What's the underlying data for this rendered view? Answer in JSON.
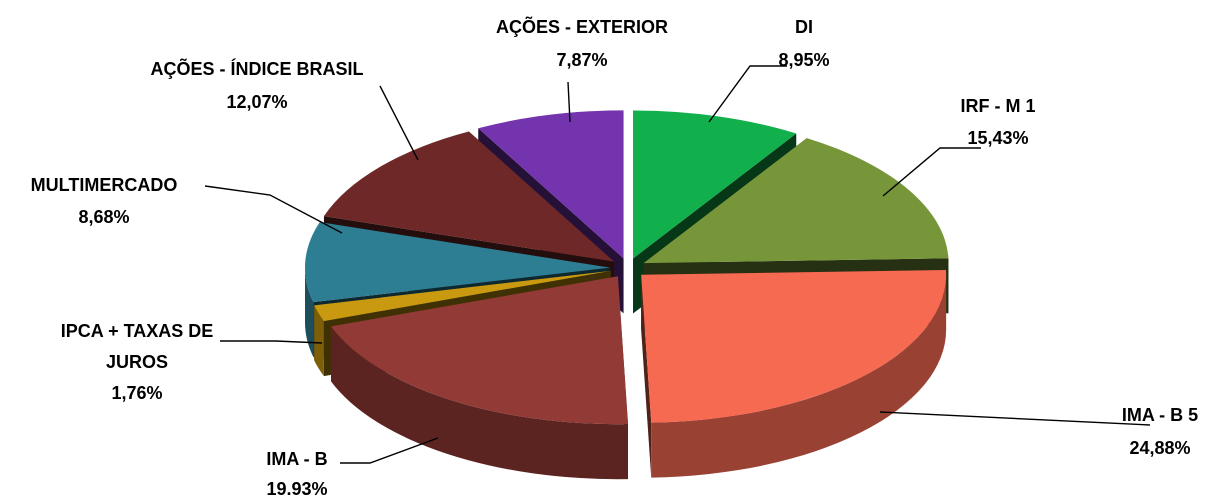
{
  "chart_data": {
    "type": "pie",
    "variant": "3d-exploded",
    "categories": [
      "DI",
      "IRF - M 1",
      "IMA - B 5",
      "IMA - B",
      "IPCA + TAXAS DE JUROS",
      "MULTIMERCADO",
      "AÇÕES - ÍNDICE BRASIL",
      "AÇÕES - EXTERIOR"
    ],
    "values": [
      8.95,
      15.43,
      24.88,
      19.93,
      1.76,
      8.68,
      12.07,
      7.87
    ],
    "value_labels": [
      "8,95%",
      "15,43%",
      "24,88%",
      "19.93%",
      "1,76%",
      "8,68%",
      "12,07%",
      "7,87%"
    ],
    "colors": [
      "#12b04c",
      "#77963a",
      "#f76a52",
      "#923a36",
      "#c99a10",
      "#2d7d93",
      "#6e2828",
      "#7434ad"
    ],
    "title": "",
    "legend": "none"
  },
  "labels": {
    "di": {
      "name": "DI",
      "value": "8,95%"
    },
    "irf": {
      "name": "IRF - M 1",
      "value": "15,43%"
    },
    "imab5": {
      "name": "IMA - B 5",
      "value": "24,88%"
    },
    "imab": {
      "name": "IMA - B",
      "value": "19.93%"
    },
    "ipca": {
      "name1": "IPCA + TAXAS DE",
      "name2": "JUROS",
      "value": "1,76%"
    },
    "multi": {
      "name": "MULTIMERCADO",
      "value": "8,68%"
    },
    "acoesbr": {
      "name": "AÇÕES - ÍNDICE BRASIL",
      "value": "12,07%"
    },
    "acoesext": {
      "name": "AÇÕES - EXTERIOR",
      "value": "7,87%"
    }
  }
}
